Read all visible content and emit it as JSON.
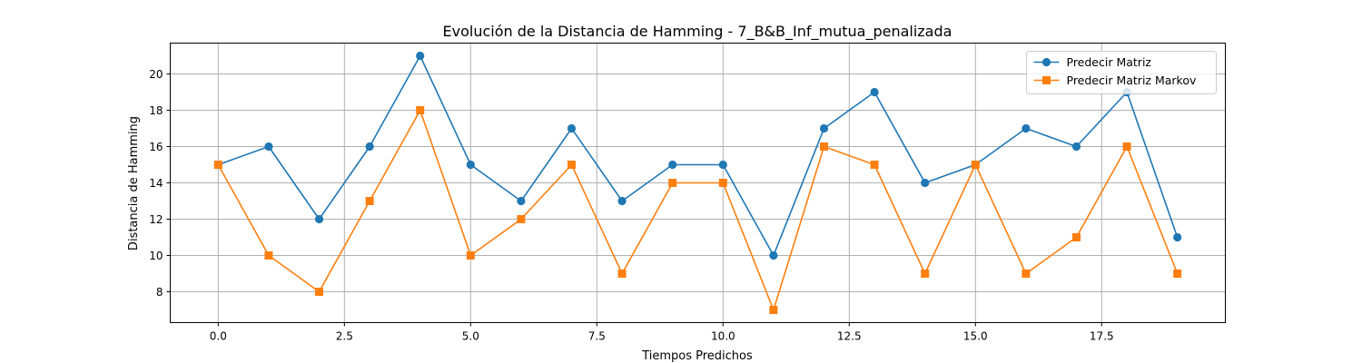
{
  "chart_data": {
    "type": "line",
    "title": "Evolución de la Distancia de Hamming - 7_B&B_Inf_mutua_penalizada",
    "xlabel": "Tiempos Predichos",
    "ylabel": "Distancia de Hamming",
    "xlim": [
      -0.95,
      19.95
    ],
    "ylim": [
      6.3,
      21.7
    ],
    "xticks": [
      0,
      2.5,
      5,
      7.5,
      10,
      12.5,
      15,
      17.5
    ],
    "xtick_labels": [
      "0.0",
      "2.5",
      "5.0",
      "7.5",
      "10.0",
      "12.5",
      "15.0",
      "17.5"
    ],
    "yticks": [
      8,
      10,
      12,
      14,
      16,
      18,
      20
    ],
    "ytick_labels": [
      "8",
      "10",
      "12",
      "14",
      "16",
      "18",
      "20"
    ],
    "grid": true,
    "legend_position": "top-right",
    "x": [
      0,
      1,
      2,
      3,
      4,
      5,
      6,
      7,
      8,
      9,
      10,
      11,
      12,
      13,
      14,
      15,
      16,
      17,
      18,
      19
    ],
    "series": [
      {
        "name": "Predecir Matriz",
        "color": "#1f77b4",
        "marker": "circle",
        "values": [
          15,
          16,
          12,
          16,
          21,
          15,
          13,
          17,
          13,
          15,
          15,
          10,
          17,
          19,
          14,
          15,
          17,
          16,
          19,
          11
        ]
      },
      {
        "name": "Predecir Matriz Markov",
        "color": "#ff7f0e",
        "marker": "square",
        "values": [
          15,
          10,
          8,
          13,
          18,
          10,
          12,
          15,
          9,
          14,
          14,
          7,
          16,
          15,
          9,
          15,
          9,
          11,
          16,
          9
        ]
      }
    ]
  }
}
